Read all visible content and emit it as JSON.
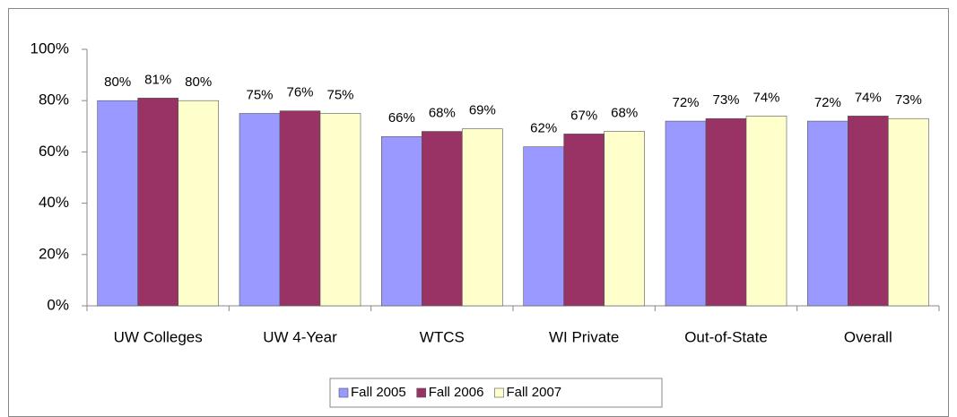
{
  "chart_data": {
    "type": "bar",
    "categories": [
      "UW Colleges",
      "UW 4-Year",
      "WTCS",
      "WI Private",
      "Out-of-State",
      "Overall"
    ],
    "series": [
      {
        "name": "Fall 2005",
        "color": "#9999ff",
        "values": [
          80,
          75,
          66,
          62,
          72,
          72
        ],
        "value_labels": [
          "80%",
          "75%",
          "66%",
          "62%",
          "72%",
          "72%"
        ]
      },
      {
        "name": "Fall 2006",
        "color": "#993366",
        "values": [
          81,
          76,
          68,
          67,
          73,
          74
        ],
        "value_labels": [
          "81%",
          "76%",
          "68%",
          "67%",
          "73%",
          "74%"
        ]
      },
      {
        "name": "Fall 2007",
        "color": "#ffffcc",
        "values": [
          80,
          75,
          69,
          68,
          74,
          73
        ],
        "value_labels": [
          "80%",
          "75%",
          "69%",
          "68%",
          "74%",
          "73%"
        ]
      }
    ],
    "ylim": [
      0,
      100
    ],
    "yticks": [
      {
        "value": 0,
        "label": "0%"
      },
      {
        "value": 20,
        "label": "20%"
      },
      {
        "value": 40,
        "label": "40%"
      },
      {
        "value": 60,
        "label": "60%"
      },
      {
        "value": 80,
        "label": "80%"
      },
      {
        "value": 100,
        "label": "100%"
      }
    ],
    "grid": false,
    "legend": "bottom"
  }
}
